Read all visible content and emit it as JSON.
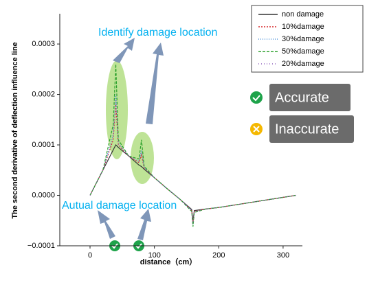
{
  "chart_data": {
    "type": "line",
    "x_label": "distance（cm）",
    "y_label": "The second derivative of deflection influence line",
    "x": [
      0,
      20,
      36,
      40,
      44,
      60,
      76,
      80,
      84,
      100,
      120,
      140,
      158,
      160,
      162,
      180,
      200,
      240,
      280,
      320
    ],
    "series": [
      {
        "name": "non damage",
        "color": "#333333",
        "dash": "none",
        "values": [
          0,
          5e-05,
          9e-05,
          0.0001,
          9.5e-05,
          7.8e-05,
          6e-05,
          5.7e-05,
          5.2e-05,
          3.5e-05,
          1.3e-05,
          -8e-06,
          -2.8e-05,
          -5e-05,
          -3e-05,
          -2.7e-05,
          -2.4e-05,
          -1.6e-05,
          -8e-06,
          0
        ]
      },
      {
        "name": "10%damage",
        "color": "#d62728",
        "dash": "2,2",
        "values": [
          0,
          5e-05,
          0.00011,
          0.00018,
          0.0001,
          7.8e-05,
          6.5e-05,
          8e-05,
          5.5e-05,
          3.5e-05,
          1.3e-05,
          -8e-06,
          -3e-05,
          -5.5e-05,
          -3.2e-05,
          -2.7e-05,
          -2.4e-05,
          -1.6e-05,
          -8e-06,
          0
        ]
      },
      {
        "name": "30%damage",
        "color": "#4a90d9",
        "dash": "1,2",
        "values": [
          0,
          5e-05,
          0.00012,
          0.0002,
          0.000105,
          7.8e-05,
          6.8e-05,
          9e-05,
          5.6e-05,
          3.5e-05,
          1.3e-05,
          -8e-06,
          -3e-05,
          -5.8e-05,
          -3.3e-05,
          -2.7e-05,
          -2.4e-05,
          -1.6e-05,
          -8e-06,
          0
        ]
      },
      {
        "name": "50%damage",
        "color": "#2ca02c",
        "dash": "4,2",
        "values": [
          0,
          5e-05,
          0.00014,
          0.00026,
          0.00011,
          7.8e-05,
          7.2e-05,
          0.00011,
          5.8e-05,
          3.5e-05,
          1.3e-05,
          -8e-06,
          -3.2e-05,
          -6.2e-05,
          -3.4e-05,
          -2.7e-05,
          -2.4e-05,
          -1.6e-05,
          -8e-06,
          0
        ]
      },
      {
        "name": "20%damage",
        "color": "#9467bd",
        "dash": "1,3",
        "values": [
          0,
          5e-05,
          0.000115,
          0.00019,
          0.0001,
          7.8e-05,
          6.6e-05,
          8.5e-05,
          5.5e-05,
          3.5e-05,
          1.3e-05,
          -8e-06,
          -3e-05,
          -5.6e-05,
          -3.2e-05,
          -2.7e-05,
          -2.4e-05,
          -1.6e-05,
          -8e-06,
          0
        ]
      }
    ],
    "xlim": [
      -47,
      330
    ],
    "xticks": [
      0,
      100,
      200,
      300
    ],
    "ylim": [
      -0.0001,
      0.00036
    ],
    "yticks": [
      {
        "value": -0.0001,
        "label": "−0.0001"
      },
      {
        "value": 0,
        "label": "0.0000"
      },
      0.0001,
      0.0002,
      0.0003
    ],
    "annotations": [
      "Identify damage location",
      "Autual damage location",
      "Accurate",
      "Inaccurate"
    ]
  }
}
